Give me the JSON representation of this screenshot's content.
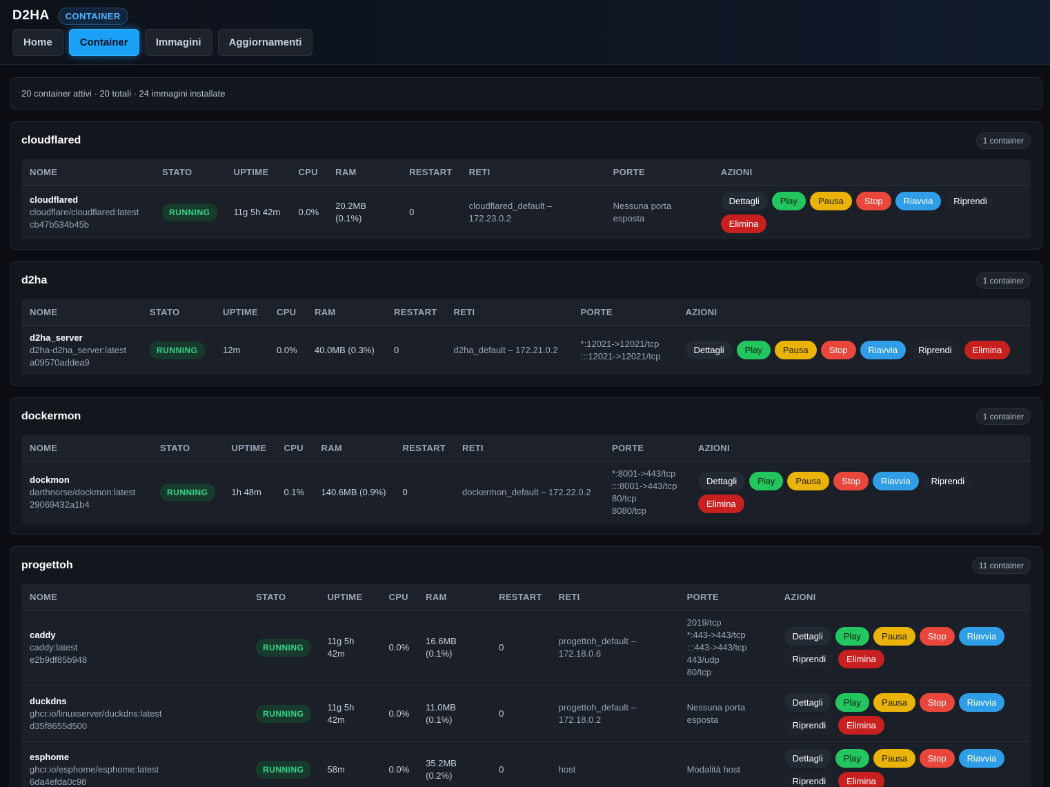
{
  "app": {
    "title": "D2HA",
    "section_badge": "CONTAINER"
  },
  "nav": {
    "tabs": [
      "Home",
      "Container",
      "Immagini",
      "Aggiornamenti"
    ]
  },
  "summary": "20 container attivi · 20 totali · 24 immagini installate",
  "headers": [
    "NOME",
    "STATO",
    "UPTIME",
    "CPU",
    "RAM",
    "RESTART",
    "RETI",
    "PORTE",
    "AZIONI"
  ],
  "actions": [
    "Dettagli",
    "Play",
    "Pausa",
    "Stop",
    "Riavvia",
    "Riprendi",
    "Elimina"
  ],
  "groups": [
    {
      "name": "cloudflared",
      "count": "1 container",
      "rows": [
        {
          "name": "cloudflared",
          "image": "cloudflare/cloudflared:latest",
          "id": "cb47b534b45b",
          "status": "RUNNING",
          "uptime": "11g 5h 42m",
          "cpu": "0.0%",
          "ram": "20.2MB (0.1%)",
          "restart": "0",
          "net": "cloudflared_default – 172.23.0.2",
          "ports": [
            "Nessuna porta esposta"
          ]
        }
      ]
    },
    {
      "name": "d2ha",
      "count": "1 container",
      "rows": [
        {
          "name": "d2ha_server",
          "image": "d2ha-d2ha_server:latest",
          "id": "a09570addea9",
          "status": "RUNNING",
          "uptime": "12m",
          "cpu": "0.0%",
          "ram": "40.0MB (0.3%)",
          "restart": "0",
          "net": "d2ha_default – 172.21.0.2",
          "ports": [
            "*:12021->12021/tcp",
            ":::12021->12021/tcp"
          ]
        }
      ]
    },
    {
      "name": "dockermon",
      "count": "1 container",
      "rows": [
        {
          "name": "dockmon",
          "image": "darthnorse/dockmon:latest",
          "id": "29069432a1b4",
          "status": "RUNNING",
          "uptime": "1h 48m",
          "cpu": "0.1%",
          "ram": "140.6MB (0.9%)",
          "restart": "0",
          "net": "dockermon_default – 172.22.0.2",
          "ports": [
            "*:8001->443/tcp",
            ":::8001->443/tcp",
            "80/tcp",
            "8080/tcp"
          ]
        }
      ]
    },
    {
      "name": "progettoh",
      "count": "11 container",
      "rows": [
        {
          "name": "caddy",
          "image": "caddy:latest",
          "id": "e2b9df85b948",
          "status": "RUNNING",
          "uptime": "11g 5h 42m",
          "cpu": "0.0%",
          "ram": "16.6MB (0.1%)",
          "restart": "0",
          "net": "progettoh_default – 172.18.0.6",
          "ports": [
            "2019/tcp",
            "*:443->443/tcp",
            ":::443->443/tcp",
            "443/udp",
            "80/tcp"
          ]
        },
        {
          "name": "duckdns",
          "image": "ghcr.io/linuxserver/duckdns:latest",
          "id": "d35f8655d500",
          "status": "RUNNING",
          "uptime": "11g 5h 42m",
          "cpu": "0.0%",
          "ram": "11.0MB (0.1%)",
          "restart": "0",
          "net": "progettoh_default – 172.18.0.2",
          "ports": [
            "Nessuna porta esposta"
          ]
        },
        {
          "name": "esphome",
          "image": "ghcr.io/esphome/esphome:latest",
          "id": "6da4efda0c98",
          "status": "RUNNING",
          "uptime": "58m",
          "cpu": "0.0%",
          "ram": "35.2MB (0.2%)",
          "restart": "0",
          "net": "host",
          "ports": [
            "Modalità host"
          ]
        }
      ]
    }
  ]
}
